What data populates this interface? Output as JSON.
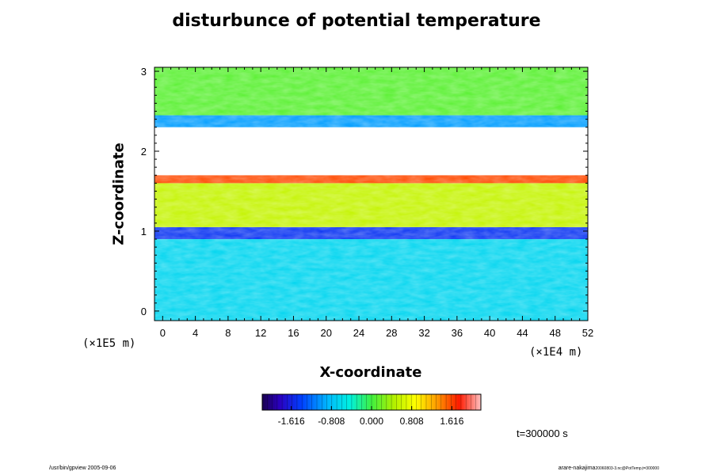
{
  "chart_data": {
    "type": "heatmap",
    "title": "disturbunce of potential temperature",
    "xlabel": "X-coordinate",
    "ylabel": "Z-coordinate",
    "x_unit": "(×1E4 m)",
    "y_unit": "(×1E5 m)",
    "xlim": [
      -1,
      52
    ],
    "ylim": [
      -0.12,
      3.05
    ],
    "x_ticks": [
      0,
      4,
      8,
      12,
      16,
      20,
      24,
      28,
      32,
      36,
      40,
      44,
      48,
      52
    ],
    "y_ticks": [
      0,
      1,
      2,
      3
    ],
    "colorbar": {
      "ticks": [
        "-1.616",
        "-0.808",
        "0.000",
        "0.808",
        "1.616"
      ],
      "tick_values": [
        -1.616,
        -0.808,
        0.0,
        0.808,
        1.616
      ],
      "range": [
        -2.2,
        2.2
      ]
    },
    "layers": [
      {
        "z_range": [
          -0.12,
          0.9
        ],
        "value": -0.65
      },
      {
        "z_range": [
          0.9,
          1.05
        ],
        "value": -1.5
      },
      {
        "z_range": [
          1.05,
          1.6
        ],
        "value": 0.55
      },
      {
        "z_range": [
          1.6,
          1.7
        ],
        "value": 1.6
      },
      {
        "z_range": [
          1.7,
          2.3
        ],
        "value": 3.0
      },
      {
        "z_range": [
          2.3,
          2.45
        ],
        "value": -1.0
      },
      {
        "z_range": [
          2.45,
          3.05
        ],
        "value": 0.1
      }
    ],
    "time_label": "t=300000 s"
  },
  "footer": {
    "left": "/usr/bin/gpview 2005-09-06",
    "right_main": "arare-nakajima",
    "right_small": "20060803-3.nc@PotTemp,t=300000"
  },
  "colors": {
    "background": "#ffffff",
    "axis": "#000000"
  }
}
